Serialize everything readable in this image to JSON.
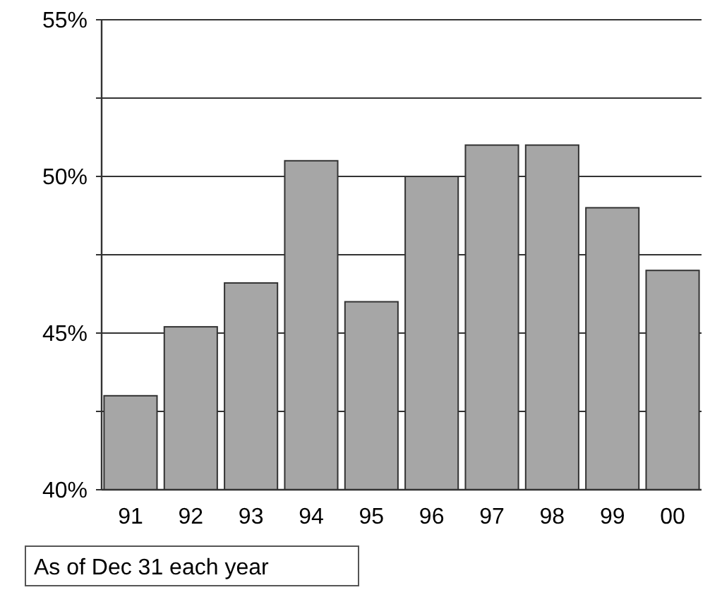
{
  "chart_data": {
    "type": "bar",
    "categories": [
      "91",
      "92",
      "93",
      "94",
      "95",
      "96",
      "97",
      "98",
      "99",
      "00"
    ],
    "values": [
      43,
      45.2,
      46.6,
      50.5,
      46,
      50,
      51,
      51,
      49,
      47
    ],
    "color": "#a6a6a6",
    "ylim": [
      40,
      55
    ],
    "yticks": [
      {
        "value": 40,
        "label": "40%"
      },
      {
        "value": 42.5,
        "label": null
      },
      {
        "value": 45,
        "label": "45%"
      },
      {
        "value": 47.5,
        "label": null
      },
      {
        "value": 50,
        "label": "50%"
      },
      {
        "value": 52.5,
        "label": null
      },
      {
        "value": 55,
        "label": "55%"
      }
    ],
    "grid": true,
    "annotations": [
      "As of Dec 31 each year"
    ]
  }
}
